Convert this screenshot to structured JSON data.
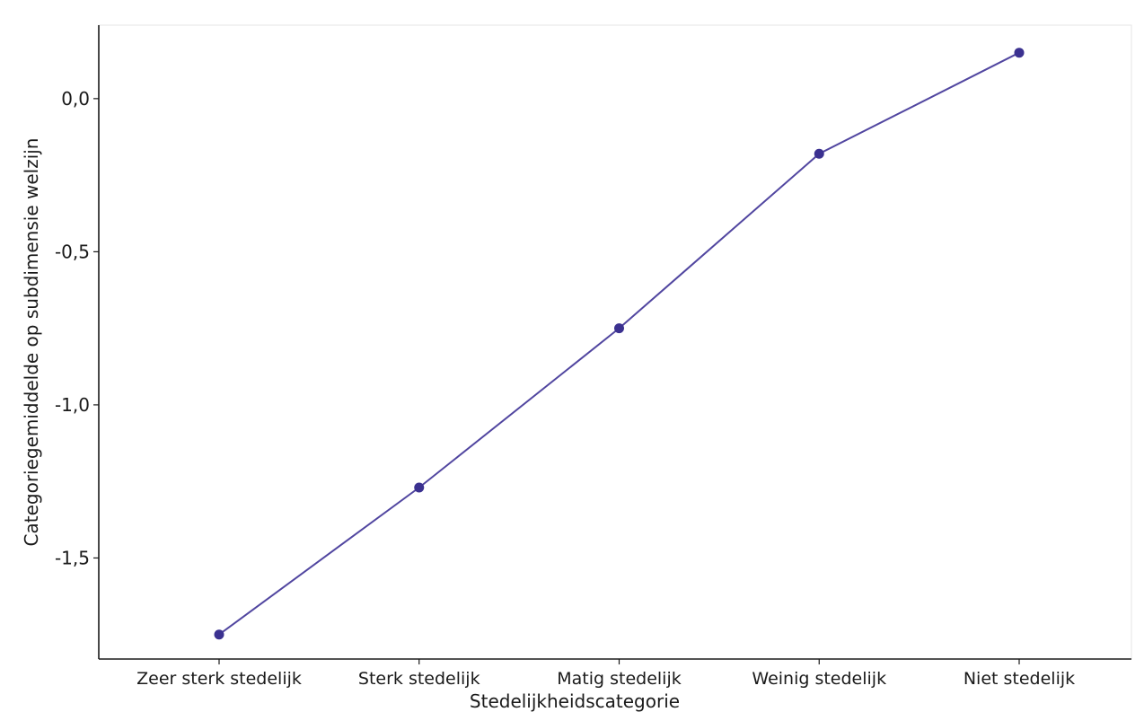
{
  "chart_data": {
    "type": "line",
    "xlabel": "Stedelijkheidscategorie",
    "ylabel": "Categoriegemiddelde op subdimensie welzijn",
    "categories": [
      "Zeer sterk stedelijk",
      "Sterk stedelijk",
      "Matig stedelijk",
      "Weinig stedelijk",
      "Niet stedelijk"
    ],
    "series": [
      {
        "values": [
          -1.75,
          -1.27,
          -0.75,
          -0.18,
          0.15
        ]
      }
    ],
    "y_ticks": [
      0.0,
      -0.5,
      -1.0,
      -1.5
    ],
    "y_tick_labels": [
      "0,0",
      "-0,5",
      "-1,0",
      "-1,5"
    ],
    "ylim": [
      -1.83,
      0.24
    ],
    "grid": false,
    "line_color": "#5146a0",
    "marker_color": "#3b3190"
  }
}
